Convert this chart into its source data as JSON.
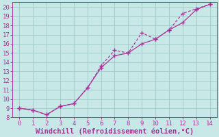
{
  "line1_x": [
    0,
    1,
    2,
    3,
    4,
    5,
    6,
    7,
    8,
    9,
    10,
    11,
    12,
    13,
    14
  ],
  "line1_y": [
    9.0,
    8.8,
    8.3,
    9.2,
    9.5,
    11.2,
    13.6,
    15.3,
    15.0,
    17.2,
    16.5,
    17.5,
    19.3,
    19.8,
    20.3
  ],
  "line2_x": [
    0,
    1,
    2,
    3,
    4,
    5,
    6,
    7,
    8,
    9,
    10,
    11,
    12,
    13,
    14
  ],
  "line2_y": [
    9.0,
    8.8,
    8.3,
    9.2,
    9.5,
    11.2,
    13.4,
    14.7,
    15.0,
    16.0,
    16.5,
    17.5,
    18.3,
    19.7,
    20.3
  ],
  "line_color": "#aa3399",
  "bg_color": "#c8e8e8",
  "grid_color": "#a0c8c8",
  "xlabel": "Windchill (Refroidissement éolien,°C)",
  "xlabel_color": "#aa3399",
  "xlabel_fontsize": 7.5,
  "tick_color": "#aa3399",
  "tick_fontsize": 6.5,
  "xlim": [
    -0.5,
    14.5
  ],
  "ylim": [
    8,
    20.5
  ],
  "xticks": [
    0,
    1,
    2,
    3,
    4,
    5,
    6,
    7,
    8,
    9,
    10,
    11,
    12,
    13,
    14
  ],
  "yticks": [
    8,
    9,
    10,
    11,
    12,
    13,
    14,
    15,
    16,
    17,
    18,
    19,
    20
  ],
  "marker": "+",
  "marker_size": 4,
  "linewidth": 0.9
}
